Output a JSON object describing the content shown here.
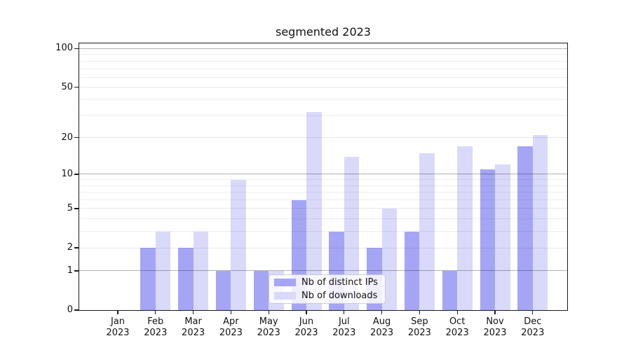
{
  "chart_data": {
    "type": "bar",
    "title": "segmented 2023",
    "months": [
      "Jan",
      "Feb",
      "Mar",
      "Apr",
      "May",
      "Jun",
      "Jul",
      "Aug",
      "Sep",
      "Oct",
      "Nov",
      "Dec"
    ],
    "year": "2023",
    "series": [
      {
        "name": "Nb of distinct IPs",
        "color": "#a5a5f5",
        "values": [
          0,
          2,
          2,
          1,
          1,
          6,
          3,
          2,
          3,
          1,
          11,
          17
        ]
      },
      {
        "name": "Nb of downloads",
        "color": "#d9d9fa",
        "values": [
          0,
          3,
          3,
          9,
          1,
          32,
          14,
          5,
          15,
          17,
          12,
          21
        ]
      }
    ],
    "y_ticks": [
      0,
      1,
      2,
      5,
      10,
      20,
      50,
      100
    ],
    "y_minor_ticks": [
      3,
      4,
      6,
      7,
      8,
      9,
      30,
      40,
      60,
      70,
      80,
      90
    ],
    "y_major_gridlines": [
      1,
      10,
      100
    ],
    "scale": "log10(1+y)",
    "ylim": [
      0,
      113
    ],
    "xlabel": "",
    "ylabel": "",
    "grid": true,
    "legend_position": "lower center"
  }
}
